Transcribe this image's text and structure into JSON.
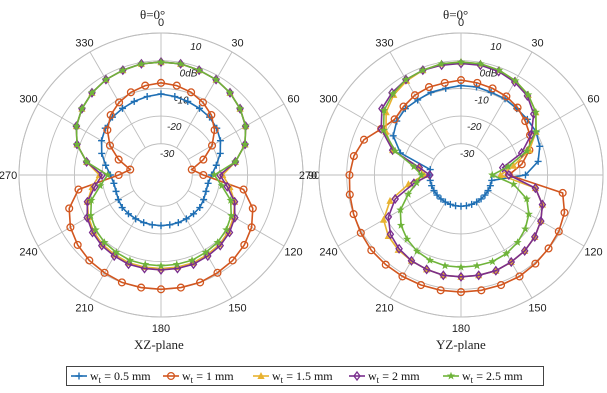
{
  "chart_data": [
    {
      "type": "polar-line",
      "title": "θ=0°",
      "xlabel": "XZ-plane",
      "angle_labels": [
        "0",
        "30",
        "60",
        "90",
        "120",
        "150",
        "180",
        "210",
        "240",
        "270",
        "300",
        "330"
      ],
      "ring_labels": [
        "10",
        "0dB",
        "-10",
        "-20",
        "-30"
      ],
      "r_range": [
        -30,
        10
      ],
      "series": [
        {
          "name": "w_t = 0.5 mm",
          "angles": [
            0,
            10,
            20,
            30,
            40,
            50,
            60,
            70,
            80,
            90,
            100,
            110,
            120,
            130,
            140,
            150,
            160,
            170,
            180,
            190,
            200,
            210,
            220,
            230,
            240,
            250,
            260,
            270,
            280,
            290,
            300,
            310,
            320,
            330,
            340,
            350
          ],
          "values": [
            -12,
            -12.5,
            -13,
            -13.5,
            -14,
            -15,
            -16.5,
            -18.5,
            -21,
            -23,
            -24,
            -24,
            -23.5,
            -23,
            -23,
            -23,
            -23,
            -23,
            -23,
            -23,
            -23,
            -23,
            -23,
            -23,
            -23.5,
            -24,
            -24,
            -23,
            -21,
            -18.5,
            -16.5,
            -15,
            -14,
            -13.5,
            -13,
            -12.5
          ]
        },
        {
          "name": "w_t = 1 mm",
          "angles": [
            0,
            10,
            20,
            30,
            40,
            50,
            60,
            70,
            80,
            90,
            100,
            110,
            120,
            130,
            140,
            150,
            160,
            170,
            180,
            190,
            200,
            210,
            220,
            230,
            240,
            250,
            260,
            270,
            280,
            290,
            300,
            310,
            320,
            330,
            340,
            350
          ],
          "values": [
            -8,
            -8.5,
            -9.5,
            -11,
            -13,
            -16,
            -20,
            -25,
            -30,
            -26,
            -11,
            -6,
            -3.5,
            -2,
            -1,
            -0.5,
            0,
            0,
            0,
            0,
            0,
            -0.5,
            -1,
            -2,
            -3.5,
            -6,
            -11,
            -26,
            -30,
            -25,
            -20,
            -16,
            -13,
            -11,
            -9.5,
            -8.5
          ]
        },
        {
          "name": "w_t = 1.5 mm",
          "angles": [
            0,
            10,
            20,
            30,
            40,
            50,
            60,
            70,
            80,
            90,
            100,
            110,
            120,
            130,
            140,
            150,
            160,
            170,
            180,
            190,
            200,
            210,
            220,
            230,
            240,
            250,
            260,
            270,
            280,
            290,
            300,
            310,
            320,
            330,
            340,
            350
          ],
          "values": [
            -0.5,
            -0.5,
            -1,
            -1.5,
            -2.5,
            -4,
            -6,
            -9,
            -14,
            -19,
            -16,
            -13,
            -11,
            -9.5,
            -8.5,
            -8,
            -7.5,
            -7.5,
            -7.5,
            -7.5,
            -7.5,
            -8,
            -8.5,
            -9.5,
            -11,
            -13,
            -16,
            -19,
            -14,
            -9,
            -6,
            -4,
            -2.5,
            -1.5,
            -1,
            -0.5
          ]
        },
        {
          "name": "w_t = 2 mm",
          "angles": [
            0,
            10,
            20,
            30,
            40,
            50,
            60,
            70,
            80,
            90,
            100,
            110,
            120,
            130,
            140,
            150,
            160,
            170,
            180,
            190,
            200,
            210,
            220,
            230,
            240,
            250,
            260,
            270,
            280,
            290,
            300,
            310,
            320,
            330,
            340,
            350
          ],
          "values": [
            -0.5,
            -0.5,
            -1,
            -1.5,
            -2.5,
            -4,
            -6,
            -9,
            -14,
            -20,
            -17,
            -13,
            -10.5,
            -9,
            -8,
            -7.5,
            -7,
            -7,
            -7,
            -7,
            -7,
            -7.5,
            -8,
            -9,
            -10.5,
            -13,
            -17,
            -20,
            -14,
            -9,
            -6,
            -4,
            -2.5,
            -1.5,
            -1,
            -0.5
          ]
        },
        {
          "name": "w_t = 2.5 mm",
          "angles": [
            0,
            10,
            20,
            30,
            40,
            50,
            60,
            70,
            80,
            90,
            100,
            110,
            120,
            130,
            140,
            150,
            160,
            170,
            180,
            190,
            200,
            210,
            220,
            230,
            240,
            250,
            260,
            270,
            280,
            290,
            300,
            310,
            320,
            330,
            340,
            350
          ],
          "values": [
            -0.5,
            -0.5,
            -1,
            -1.5,
            -2.5,
            -4,
            -6,
            -9,
            -14,
            -22,
            -19,
            -14.5,
            -12,
            -10.5,
            -9.5,
            -9,
            -8.5,
            -8.5,
            -8.5,
            -8.5,
            -8.5,
            -9,
            -9.5,
            -10.5,
            -12,
            -14.5,
            -19,
            -22,
            -14,
            -9,
            -6,
            -4,
            -2.5,
            -1.5,
            -1,
            -0.5
          ]
        }
      ]
    },
    {
      "type": "polar-line",
      "title": "θ=0°",
      "xlabel": "YZ-plane",
      "angle_labels": [
        "0",
        "30",
        "60",
        "90",
        "120",
        "150",
        "180",
        "210",
        "240",
        "270",
        "300",
        "330"
      ],
      "ring_labels": [
        "10",
        "0dB",
        "-10",
        "-20",
        "-30"
      ],
      "r_range": [
        -30,
        10
      ],
      "series": [
        {
          "name": "w_t = 0.5 mm",
          "angles": [
            0,
            10,
            20,
            30,
            40,
            50,
            60,
            70,
            80,
            90,
            100,
            110,
            120,
            130,
            140,
            150,
            160,
            170,
            180,
            190,
            200,
            210,
            220,
            230,
            240,
            250,
            260,
            270,
            280,
            290,
            300,
            310,
            320,
            330,
            340,
            350
          ],
          "values": [
            -9,
            -9,
            -9.5,
            -9.5,
            -10,
            -10,
            -10,
            -11,
            -13,
            -18,
            -30,
            -30,
            -30,
            -30,
            -30,
            -30,
            -30,
            -30,
            -30,
            -30,
            -30,
            -30,
            -30,
            -30,
            -30,
            -30,
            -30,
            -30,
            -30,
            -18,
            -13,
            -11,
            -10,
            -10,
            -9.5,
            -9.5
          ]
        },
        {
          "name": "w_t = 1 mm",
          "angles": [
            0,
            10,
            20,
            30,
            40,
            50,
            60,
            70,
            80,
            90,
            100,
            110,
            120,
            130,
            140,
            150,
            160,
            170,
            180,
            190,
            200,
            210,
            220,
            230,
            240,
            250,
            260,
            270,
            280,
            290,
            300,
            310,
            320,
            330,
            340,
            350
          ],
          "values": [
            -7,
            -7.5,
            -8,
            -8.5,
            -9.5,
            -11,
            -12.5,
            -15,
            -19,
            -24,
            -4,
            -1.5,
            -0.5,
            0,
            0.5,
            1,
            1,
            1,
            1,
            1,
            1,
            1,
            1,
            1,
            0.5,
            0,
            -0.5,
            -1,
            -2,
            -4,
            -8,
            -10,
            -9,
            -8,
            -7.5,
            -7.5
          ]
        },
        {
          "name": "w_t = 1.5 mm",
          "angles": [
            0,
            10,
            20,
            30,
            40,
            50,
            60,
            70,
            80,
            90,
            100,
            110,
            120,
            130,
            140,
            150,
            160,
            170,
            180,
            190,
            200,
            210,
            220,
            230,
            240,
            250,
            260,
            270,
            280,
            290,
            300,
            310,
            320,
            330,
            340,
            350
          ],
          "values": [
            -0.5,
            -0.5,
            -1,
            -2,
            -3.5,
            -6,
            -10,
            -15,
            -22,
            -27,
            -14,
            -10,
            -8,
            -6.5,
            -5.5,
            -5,
            -4.5,
            -4.5,
            -4.5,
            -4.5,
            -5,
            -5.5,
            -6,
            -7,
            -9,
            -14,
            -22,
            -28,
            -26,
            -15,
            -10,
            -6,
            -3.5,
            -2,
            -1,
            -0.5
          ]
        },
        {
          "name": "w_t = 2 mm",
          "angles": [
            0,
            10,
            20,
            30,
            40,
            50,
            60,
            70,
            80,
            90,
            100,
            110,
            120,
            130,
            140,
            150,
            160,
            170,
            180,
            190,
            200,
            210,
            220,
            230,
            240,
            250,
            260,
            270,
            280,
            290,
            300,
            310,
            320,
            330,
            340,
            350
          ],
          "values": [
            -1,
            -1,
            -1.5,
            -2.5,
            -4,
            -7,
            -12,
            -18,
            -26,
            -24,
            -14,
            -10,
            -8,
            -6.5,
            -5.5,
            -5,
            -4.5,
            -4.5,
            -4.5,
            -4.5,
            -5,
            -5.5,
            -6.5,
            -8,
            -11,
            -16,
            -24,
            -30,
            -26,
            -15,
            -8,
            -4,
            -2.5,
            -1.5,
            -1,
            -1
          ]
        },
        {
          "name": "w_t = 2.5 mm",
          "angles": [
            0,
            10,
            20,
            30,
            40,
            50,
            60,
            70,
            80,
            90,
            100,
            110,
            120,
            130,
            140,
            150,
            160,
            170,
            180,
            190,
            200,
            210,
            220,
            230,
            240,
            250,
            260,
            270,
            280,
            290,
            300,
            310,
            320,
            330,
            340,
            350
          ],
          "values": [
            -0.5,
            -0.5,
            -1,
            -2,
            -3.5,
            -6,
            -10,
            -16,
            -24,
            -30,
            -22,
            -16,
            -13,
            -11,
            -9.5,
            -8.5,
            -8,
            -8,
            -8,
            -8,
            -8.5,
            -9.5,
            -11,
            -13,
            -16,
            -21,
            -25,
            -27,
            -24,
            -16,
            -9,
            -5,
            -3,
            -1.5,
            -1,
            -0.5
          ]
        }
      ]
    }
  ],
  "legend": {
    "items": [
      {
        "label": "w",
        "sub": "t",
        "suffix": " = 0.5 mm",
        "color": "#1f6fb4",
        "marker": "plus"
      },
      {
        "label": "w",
        "sub": "t",
        "suffix": " = 1 mm",
        "color": "#d2561f",
        "marker": "circle"
      },
      {
        "label": "w",
        "sub": "t",
        "suffix": " = 1.5 mm",
        "color": "#e8b230",
        "marker": "triangle"
      },
      {
        "label": "w",
        "sub": "t",
        "suffix": " = 2 mm",
        "color": "#7a2e8e",
        "marker": "diamond"
      },
      {
        "label": "w",
        "sub": "t",
        "suffix": " = 2.5 mm",
        "color": "#6fb43a",
        "marker": "star"
      }
    ]
  },
  "colors": {
    "grid": "#bdbdbd",
    "axis": "#444444"
  }
}
